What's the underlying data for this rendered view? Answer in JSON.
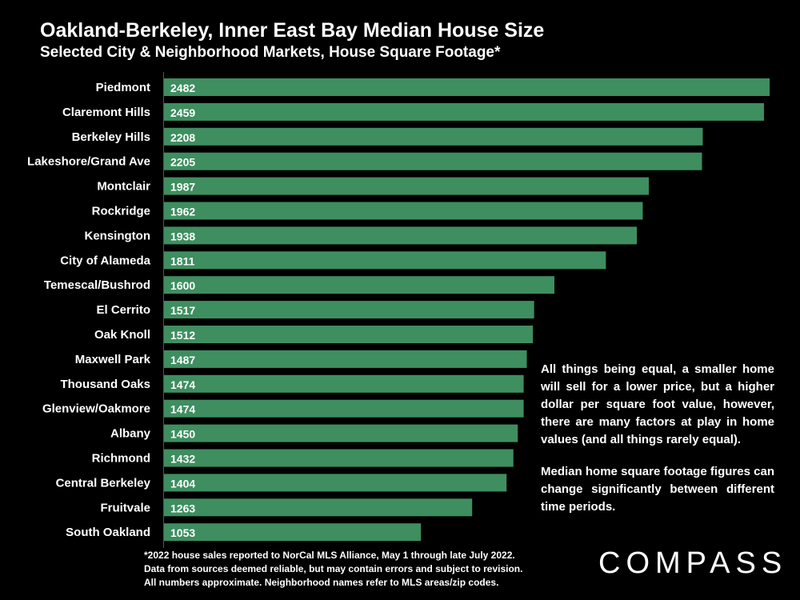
{
  "chart_data": {
    "type": "bar",
    "orientation": "horizontal",
    "title": "Oakland-Berkeley, Inner East Bay Median House Size",
    "subtitle": "Selected City & Neighborhood Markets, House Square Footage*",
    "categories": [
      "Piedmont",
      "Claremont Hills",
      "Berkeley Hills",
      "Lakeshore/Grand Ave",
      "Montclair",
      "Rockridge",
      "Kensington",
      "City of Alameda",
      "Temescal/Bushrod",
      "El Cerrito",
      "Oak Knoll",
      "Maxwell Park",
      "Thousand Oaks",
      "Glenview/Oakmore",
      "Albany",
      "Richmond",
      "Central Berkeley",
      "Fruitvale",
      "South Oakland"
    ],
    "values": [
      2482,
      2459,
      2208,
      2205,
      1987,
      1962,
      1938,
      1811,
      1600,
      1517,
      1512,
      1487,
      1474,
      1474,
      1450,
      1432,
      1404,
      1263,
      1053
    ],
    "xlim": [
      0,
      2482
    ],
    "bar_color": "#3E8E60"
  },
  "notes": {
    "note1": "All things being equal, a smaller home will sell for a lower price, but a higher dollar per square foot value, however, there are many factors at play in home values (and all things rarely equal).",
    "note2": "Median home square footage figures can change significantly between different time periods."
  },
  "footnote": {
    "line1": "*2022 house sales reported to NorCal MLS Alliance, May 1 through late July 2022.",
    "line2": "Data from sources deemed reliable, but may contain errors and subject to revision.",
    "line3": "All numbers approximate. Neighborhood names refer to MLS areas/zip codes."
  },
  "logo": {
    "text": "COMPASS"
  }
}
